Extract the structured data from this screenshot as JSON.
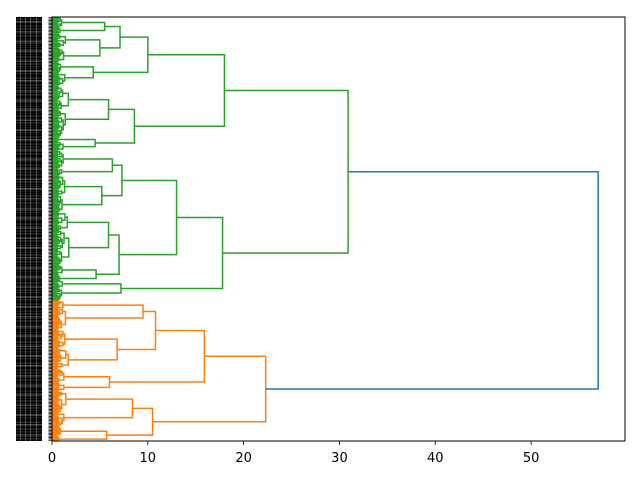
{
  "chart_data": {
    "type": "dendrogram",
    "orientation": "right",
    "title": "",
    "xlabel": "",
    "ylabel": "",
    "xlim": [
      0,
      59.8
    ],
    "xticks": [
      0,
      10,
      20,
      30,
      40,
      50
    ],
    "xtick_labels": [
      "0",
      "10",
      "20",
      "30",
      "40",
      "50"
    ],
    "grid": false,
    "leaf_labels_legible": false,
    "colors": {
      "above_threshold": "#1f77b4",
      "cluster_1": "#2ca02c",
      "cluster_2": "#ff7f0e"
    },
    "tree": {
      "h": 57.0,
      "color": "above_threshold",
      "children": [
        {
          "h": 30.9,
          "color": "cluster_1",
          "children": [
            {
              "h": 18.0,
              "children": [
                {
                  "h": 10.0,
                  "children": [
                    {
                      "h": 7.1,
                      "children": [
                        {
                          "h": 5.5,
                          "n": 12
                        },
                        {
                          "h": 5.0,
                          "n": 20
                        }
                      ]
                    },
                    {
                      "h": 4.3,
                      "n": 17
                    }
                  ]
                },
                {
                  "h": 8.6,
                  "children": [
                    {
                      "h": 5.9,
                      "n": 37
                    },
                    {
                      "h": 4.5,
                      "n": 9
                    }
                  ]
                }
              ]
            },
            {
              "h": 17.8,
              "children": [
                {
                  "h": 13.0,
                  "children": [
                    {
                      "h": 7.3,
                      "children": [
                        {
                          "h": 6.3,
                          "n": 18
                        },
                        {
                          "h": 5.2,
                          "n": 26
                        }
                      ]
                    },
                    {
                      "h": 7.0,
                      "children": [
                        {
                          "h": 5.9,
                          "n": 38
                        },
                        {
                          "h": 4.6,
                          "n": 11
                        }
                      ]
                    }
                  ]
                },
                {
                  "h": 7.2,
                  "n": 14
                }
              ]
            }
          ]
        },
        {
          "h": 22.3,
          "color": "cluster_2",
          "children": [
            {
              "h": 15.9,
              "children": [
                {
                  "h": 10.8,
                  "children": [
                    {
                      "h": 9.5,
                      "n": 21
                    },
                    {
                      "h": 6.8,
                      "n": 27
                    }
                  ]
                },
                {
                  "h": 6.0,
                  "n": 17
                }
              ]
            },
            {
              "h": 10.5,
              "children": [
                {
                  "h": 8.4,
                  "n": 24
                },
                {
                  "h": 5.7,
                  "n": 11
                }
              ]
            }
          ]
        }
      ]
    }
  }
}
